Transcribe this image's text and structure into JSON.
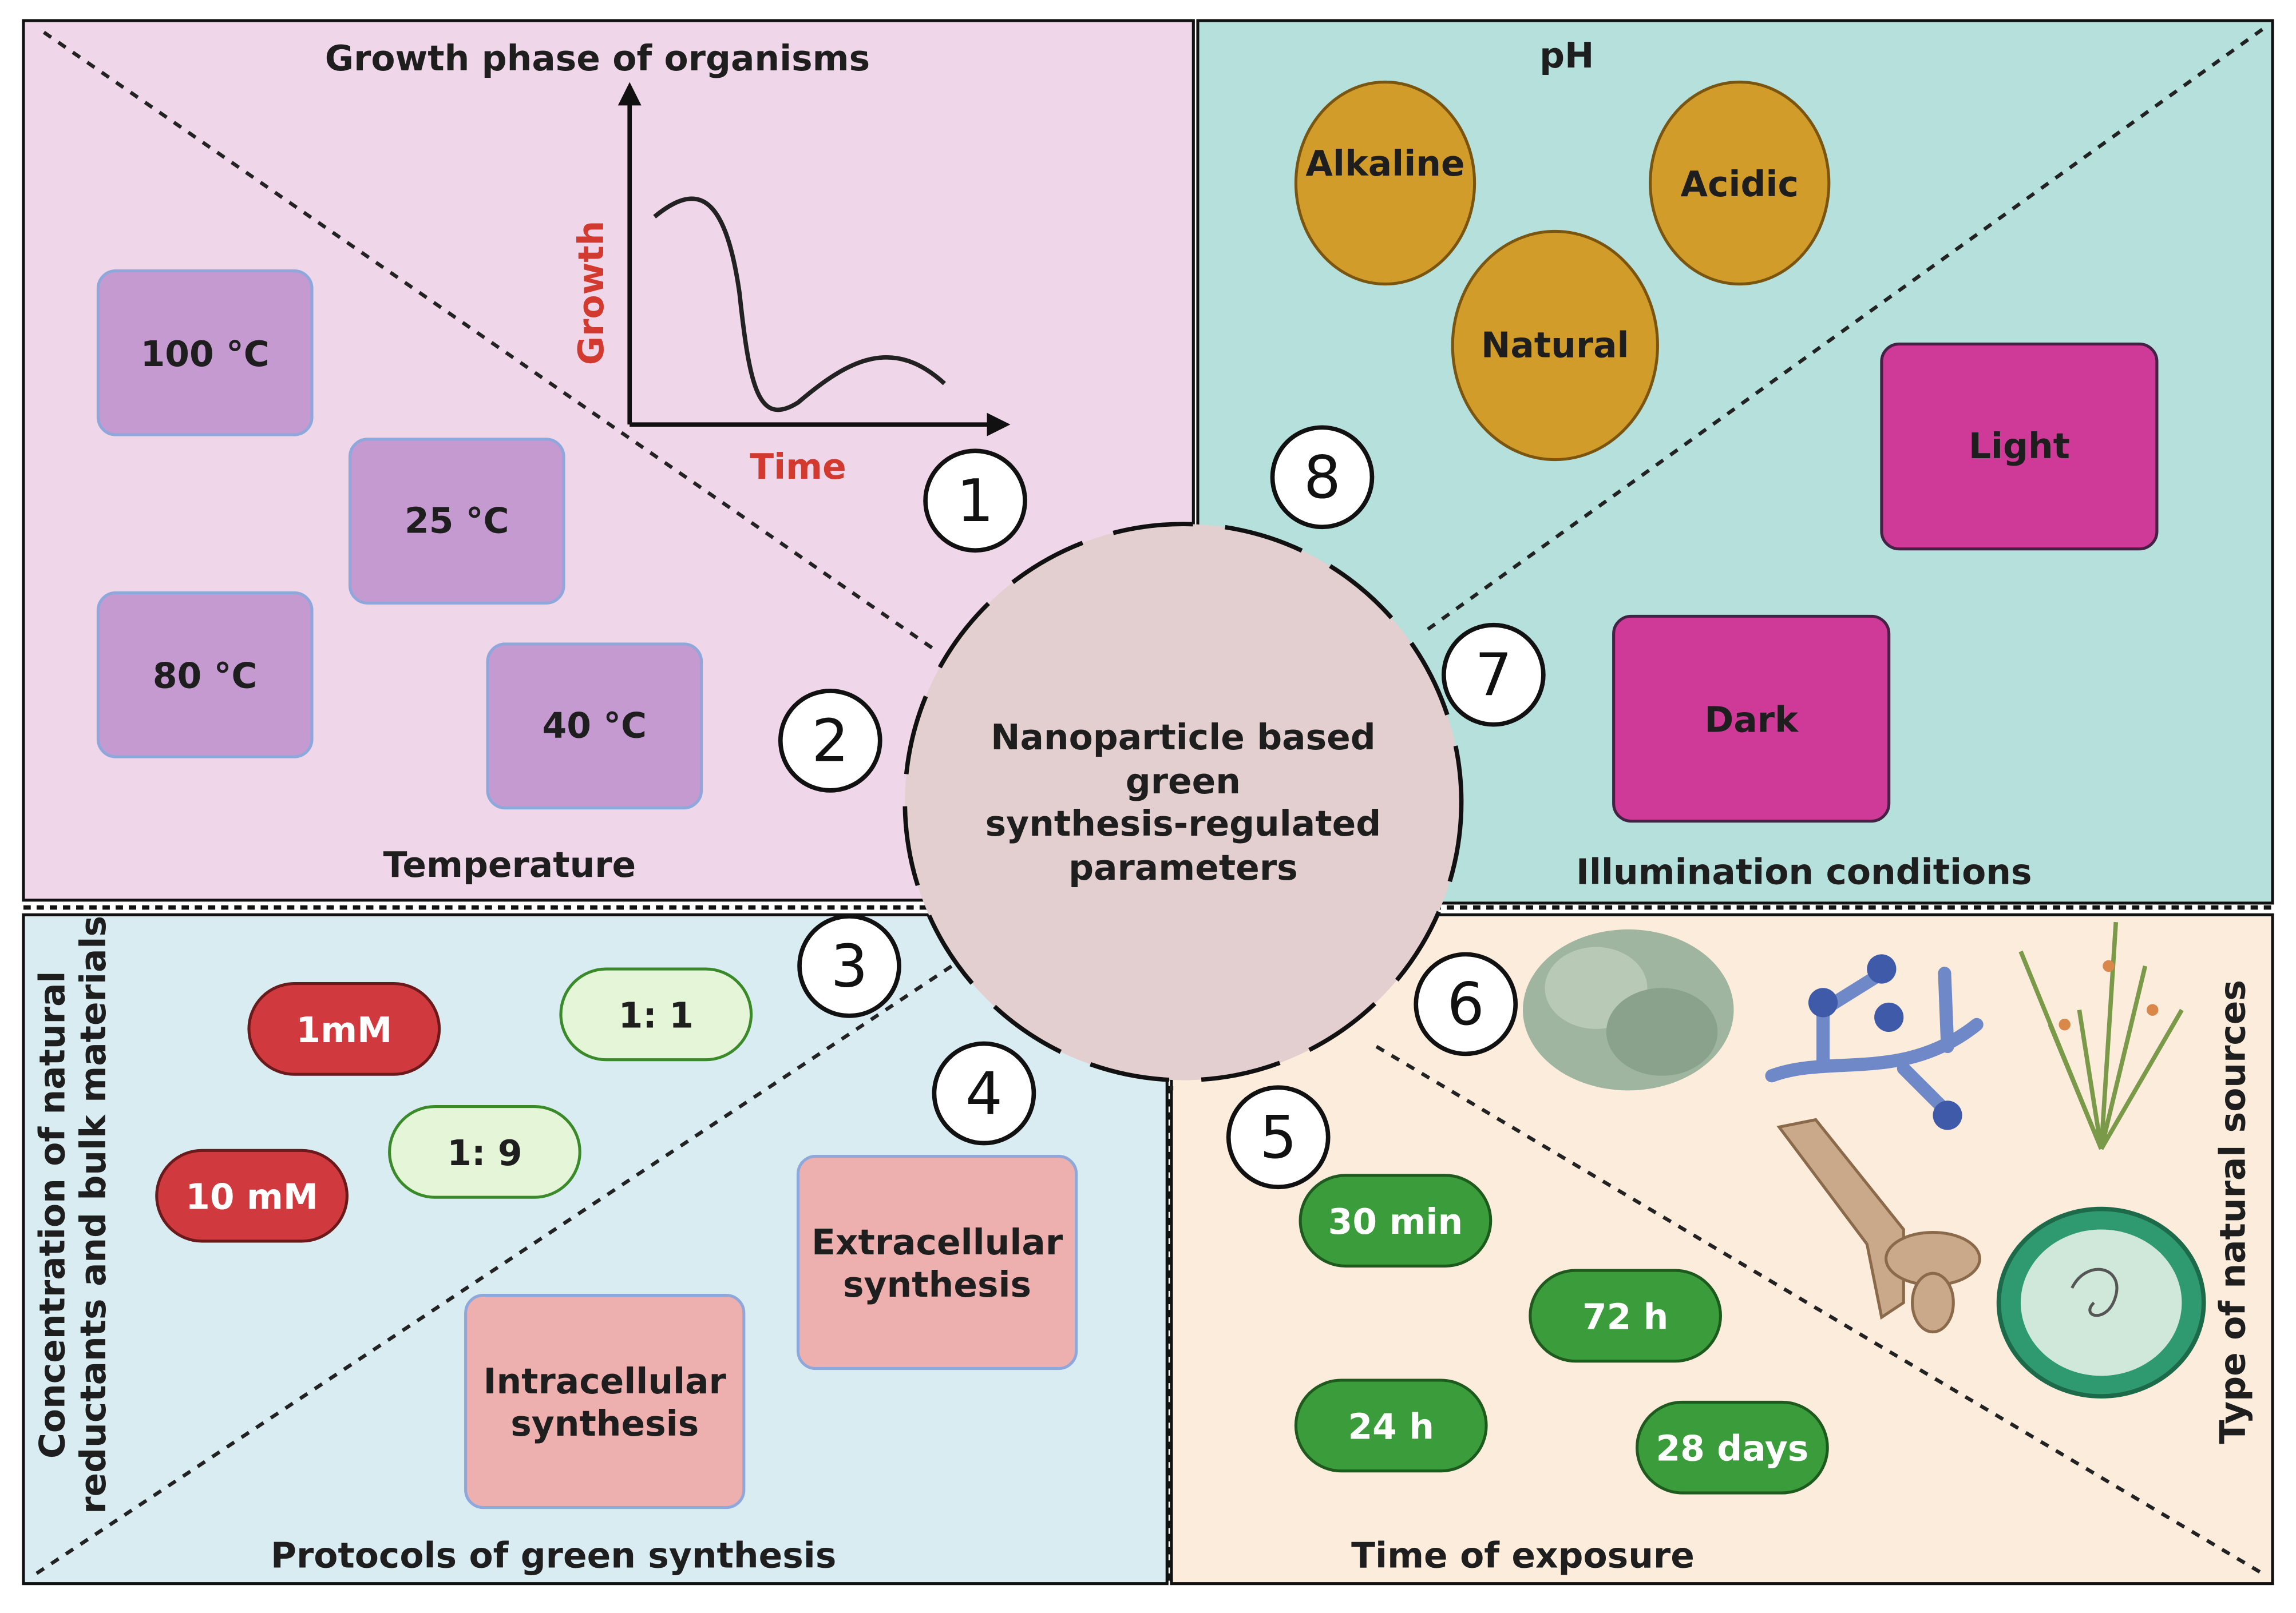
{
  "center": {
    "lines": [
      "Nanoparticle based",
      "green",
      "synthesis-regulated",
      "parameters"
    ]
  },
  "numbers": [
    "1",
    "2",
    "3",
    "4",
    "5",
    "6",
    "7",
    "8"
  ],
  "growth": {
    "title": "Growth phase of organisms",
    "ylabel": "Growth",
    "xlabel": "Time"
  },
  "temperature": {
    "title": "Temperature",
    "items": [
      "100 °C",
      "25 °C",
      "80 °C",
      "40 °C"
    ]
  },
  "ph": {
    "title": "pH",
    "items": [
      "Alkaline",
      "Acidic",
      "Natural"
    ]
  },
  "illumination": {
    "title": "Illumination conditions",
    "items": [
      "Light",
      "Dark"
    ]
  },
  "concentration": {
    "title_lines": [
      "Concentration of natural",
      "reductants and bulk materials"
    ],
    "items": [
      "1mM",
      "10 mM",
      "1: 1",
      "1: 9"
    ]
  },
  "protocols": {
    "title": "Protocols of green synthesis",
    "extracellular": [
      "Extracellular",
      "synthesis"
    ],
    "intracellular": [
      "Intracellular",
      "synthesis"
    ]
  },
  "exposure": {
    "title": "Time of exposure",
    "items": [
      "30 min",
      "72 h",
      "24 h",
      "28 days"
    ]
  },
  "sources": {
    "title": "Type of natural sources",
    "icons": [
      "lichen-icon",
      "fungus-icon",
      "plant-icon",
      "algae-filament-icon",
      "cell-icon"
    ]
  },
  "colors": {
    "pink_panel": "#efd6e8",
    "teal_panel": "#b5e0dc",
    "blue_panel": "#d9ecf1",
    "peach_panel": "#fcecdc",
    "center": "#e3cfcf",
    "temp_box": "#c49ad0",
    "ph_ellipse": "#d19c2a",
    "illum_box": "#cf3a98",
    "conc_red": "#d03a3f",
    "ratio_green": "#e4f5d8",
    "protocol_box": "#eeb0ae",
    "exposure_green": "#3a9c3a",
    "growth_axis_label": "#d23a30"
  }
}
